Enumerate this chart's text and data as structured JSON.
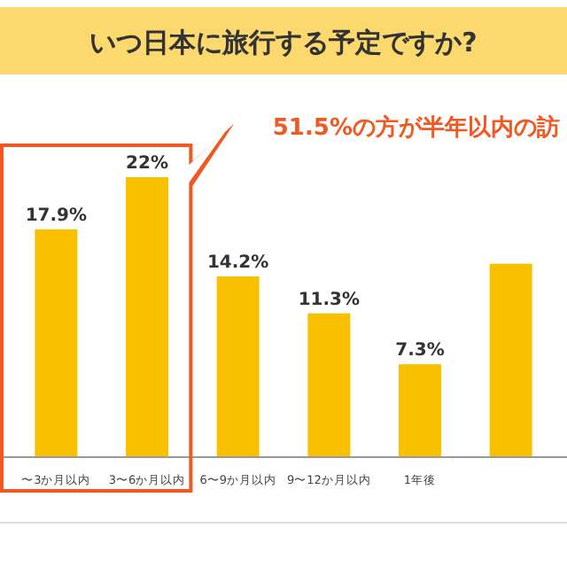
{
  "chart_data": {
    "type": "bar",
    "title": "いつ日本に旅行する予定ですか?",
    "categories": [
      "〜3か月以内",
      "3〜6か月以内",
      "6〜9か月以内",
      "9〜12か月以内",
      "1年後",
      null
    ],
    "values": [
      17.9,
      22,
      14.2,
      11.3,
      7.3,
      15.2
    ],
    "value_labels": [
      "17.9%",
      "22%",
      "14.2%",
      "11.3%",
      "7.3%",
      null
    ],
    "color": "#f9c000",
    "annotations": [
      "51.5%の方が半年以内の訪"
    ]
  }
}
